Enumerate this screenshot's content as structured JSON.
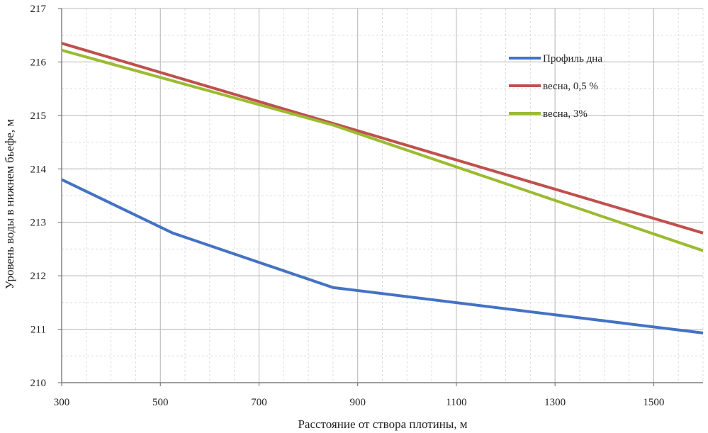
{
  "chart_data": {
    "type": "line",
    "title": "",
    "xlabel": "Расстояние от створа плотины, м",
    "ylabel": "Уровень воды в нижнем бьефе, м",
    "xlim": [
      300,
      1600
    ],
    "ylim": [
      210,
      217
    ],
    "x_ticks": [
      300,
      500,
      700,
      900,
      1100,
      1300,
      1500
    ],
    "y_ticks": [
      210,
      211,
      212,
      213,
      214,
      215,
      216,
      217
    ],
    "x_minor_step": 50,
    "y_minor_step": 0.5,
    "grid": true,
    "legend_position": "top-right",
    "series": [
      {
        "name": "Профиль дна",
        "color": "#4472c4",
        "x": [
          300,
          525,
          850,
          1600
        ],
        "y": [
          213.8,
          212.8,
          211.78,
          210.93
        ]
      },
      {
        "name": "весна, 0,5 %",
        "color": "#c0504d",
        "x": [
          300,
          850,
          1600
        ],
        "y": [
          216.35,
          214.85,
          212.8
        ]
      },
      {
        "name": "весна, 3%",
        "color": "#9bbb31",
        "x": [
          300,
          850,
          1600
        ],
        "y": [
          216.22,
          214.82,
          212.47
        ]
      }
    ]
  }
}
